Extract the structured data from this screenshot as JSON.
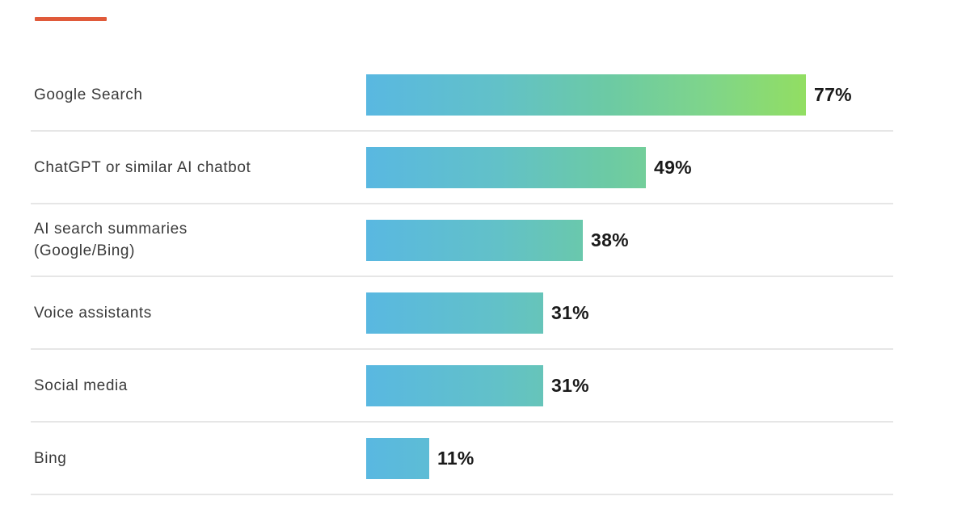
{
  "header": {
    "accent_color": "#e05a3a"
  },
  "chart_data": {
    "type": "bar",
    "orientation": "horizontal",
    "title": "",
    "xlabel": "",
    "ylabel": "",
    "categories": [
      "Google Search",
      "ChatGPT or similar AI chatbot",
      "AI search summaries (Google/Bing)",
      "Voice assistants",
      "Social media",
      "Bing"
    ],
    "values": [
      77,
      49,
      38,
      31,
      31,
      11
    ],
    "value_labels": [
      "77%",
      "49%",
      "38%",
      "31%",
      "31%",
      "11%"
    ],
    "unit": "%",
    "xlim": [
      0,
      77
    ],
    "grid": false,
    "legend": null,
    "colors": {
      "gradient_start": "#59b8e1",
      "gradient_end": "#92de62",
      "divider": "#e6e6e6",
      "label_text": "#3a3a3a",
      "value_text": "#1a1a1a"
    }
  },
  "rows": [
    {
      "label_lines": [
        "Google Search"
      ],
      "value": 77,
      "value_label": "77%"
    },
    {
      "label_lines": [
        "ChatGPT or similar AI chatbot"
      ],
      "value": 49,
      "value_label": "49%"
    },
    {
      "label_lines": [
        "AI search summaries",
        "(Google/Bing)"
      ],
      "value": 38,
      "value_label": "38%"
    },
    {
      "label_lines": [
        "Voice assistants"
      ],
      "value": 31,
      "value_label": "31%"
    },
    {
      "label_lines": [
        "Social media"
      ],
      "value": 31,
      "value_label": "31%"
    },
    {
      "label_lines": [
        "Bing"
      ],
      "value": 11,
      "value_label": "11%"
    }
  ]
}
